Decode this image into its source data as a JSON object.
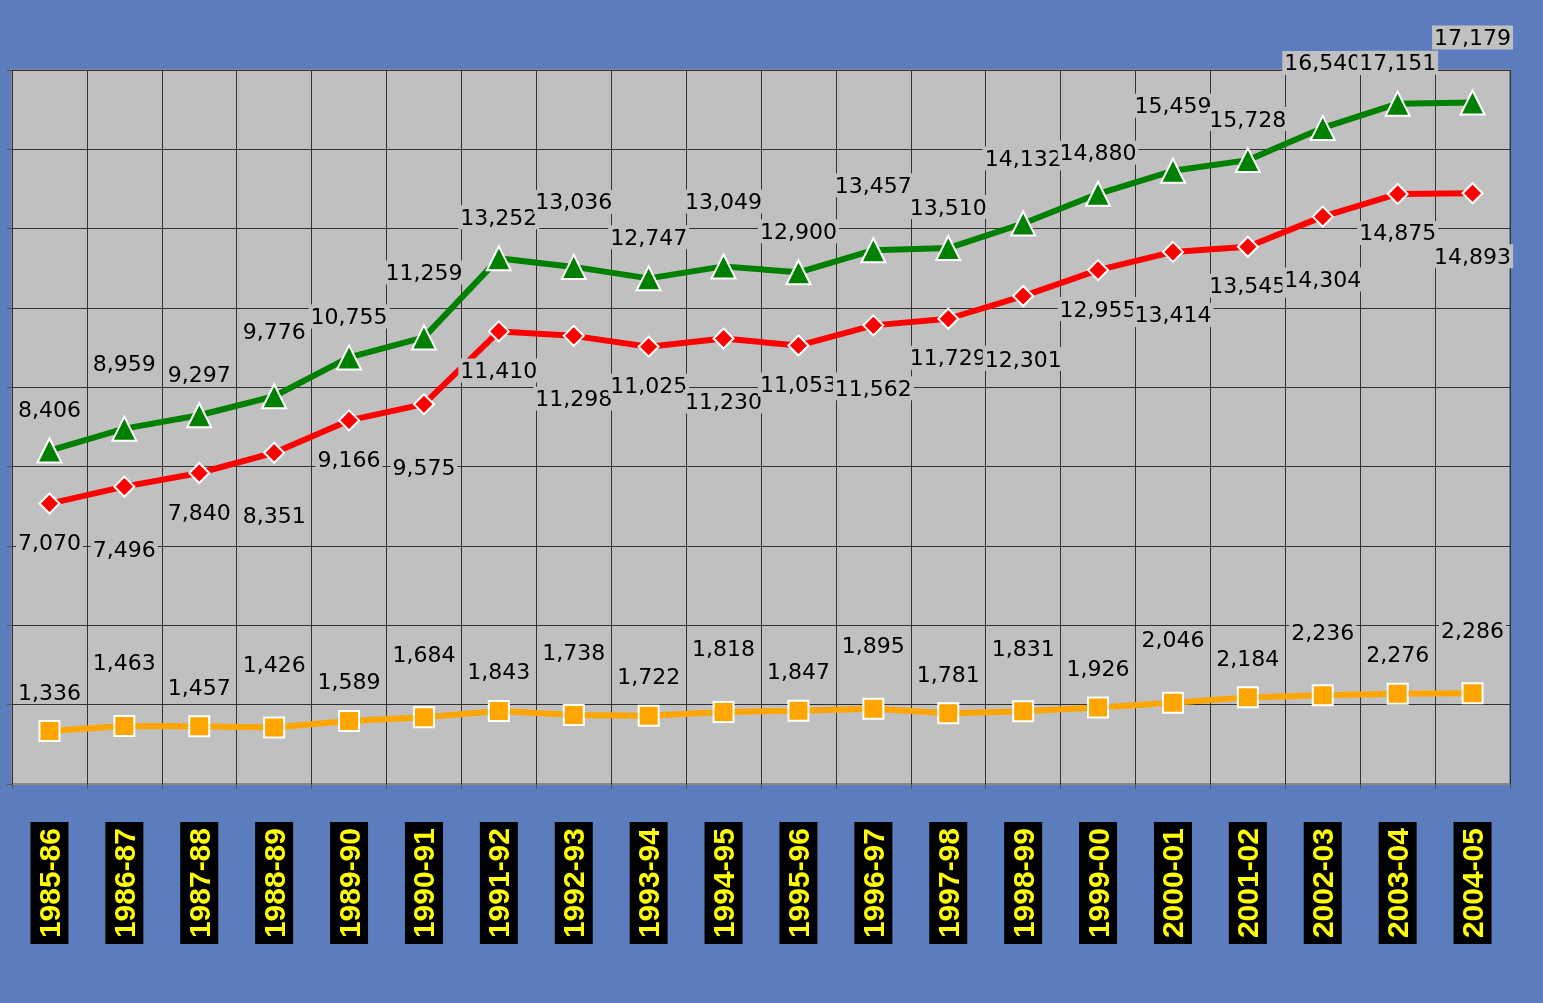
{
  "chart_data": {
    "type": "line",
    "categories": [
      "1985-86",
      "1986-87",
      "1987-88",
      "1988-89",
      "1989-90",
      "1990-91",
      "1991-92",
      "1992-93",
      "1993-94",
      "1994-95",
      "1995-96",
      "1996-97",
      "1997-98",
      "1998-99",
      "1999-00",
      "2000-01",
      "2001-02",
      "2002-03",
      "2003-04",
      "2004-05"
    ],
    "series": [
      {
        "color": "#008000",
        "marker": "triangle",
        "values": [
          8406,
          8959,
          9297,
          9776,
          10755,
          11259,
          13252,
          13036,
          12747,
          13049,
          12900,
          13457,
          13510,
          14132,
          14880,
          15459,
          15728,
          16540,
          17151,
          17179
        ],
        "value_labels": [
          "8,406",
          "8,959",
          "9,297",
          "9,776",
          "10,755",
          "11,259",
          "13,252",
          "13,036",
          "12,747",
          "13,049",
          "12,900",
          "13,457",
          "13,510",
          "14,132",
          "14,880",
          "15,459",
          "15,728",
          "16,540",
          "17,151",
          "17,179"
        ]
      },
      {
        "color": "#ff0000",
        "marker": "diamond",
        "values": [
          7070,
          7496,
          7840,
          8351,
          9166,
          9575,
          11410,
          11298,
          11025,
          11230,
          11053,
          11562,
          11729,
          12301,
          12955,
          13414,
          13545,
          14304,
          14875,
          14893
        ],
        "value_labels": [
          "7,070",
          "7,496",
          "7,840",
          "8,351",
          "9,166",
          "9,575",
          "11,410",
          "11,298",
          "11,025",
          "11,230",
          "11,053",
          "11,562",
          "11,729",
          "12,301",
          "12,955",
          "13,414",
          "13,545",
          "14,304",
          "14,875",
          "14,893"
        ]
      },
      {
        "color": "#ffa500",
        "marker": "square",
        "values": [
          1336,
          1463,
          1457,
          1426,
          1589,
          1684,
          1843,
          1738,
          1722,
          1818,
          1847,
          1895,
          1781,
          1831,
          1926,
          2046,
          2184,
          2236,
          2276,
          2286
        ],
        "value_labels": [
          "1,336",
          "1,463",
          "1,457",
          "1,426",
          "1,589",
          "1,684",
          "1,843",
          "1,738",
          "1,722",
          "1,818",
          "1,847",
          "1,895",
          "1,781",
          "1,831",
          "1,926",
          "2,046",
          "2,184",
          "2,236",
          "2,276",
          "2,286"
        ]
      }
    ],
    "tick_labels": "x",
    "grid": true,
    "line_style": "solid"
  }
}
